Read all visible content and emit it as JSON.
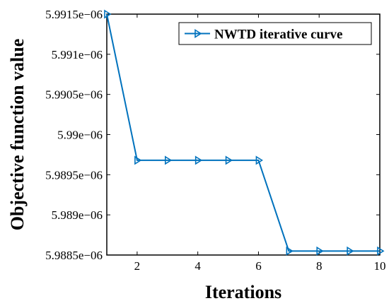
{
  "chart_data": {
    "type": "line",
    "xlabel": "Iterations",
    "ylabel": "Objective function value",
    "xlim": [
      1,
      10
    ],
    "ylim": [
      5.9885e-06,
      5.9915e-06
    ],
    "x_ticks": [
      2,
      4,
      6,
      8,
      10
    ],
    "x_tick_labels": [
      "2",
      "4",
      "6",
      "8",
      "10"
    ],
    "y_ticks": [
      5.9885e-06,
      5.989e-06,
      5.9895e-06,
      5.99e-06,
      5.9905e-06,
      5.991e-06,
      5.9915e-06
    ],
    "y_tick_labels": [
      "5.9885e−06",
      "5.989e−06",
      "5.9895e−06",
      "5.99e−06",
      "5.9905e−06",
      "5.991e−06",
      "5.9915e−06"
    ],
    "grid": false,
    "legend_position": "top-right",
    "series": [
      {
        "name": "NWTD iterative curve",
        "color": "#0072BD",
        "marker": "right-pointing-triangle",
        "x": [
          1,
          2,
          3,
          4,
          5,
          6,
          7,
          8,
          9,
          10
        ],
        "y": [
          5.9915e-06,
          5.98968e-06,
          5.98968e-06,
          5.98968e-06,
          5.98968e-06,
          5.98968e-06,
          5.98855e-06,
          5.98855e-06,
          5.98855e-06,
          5.98855e-06
        ]
      }
    ]
  }
}
